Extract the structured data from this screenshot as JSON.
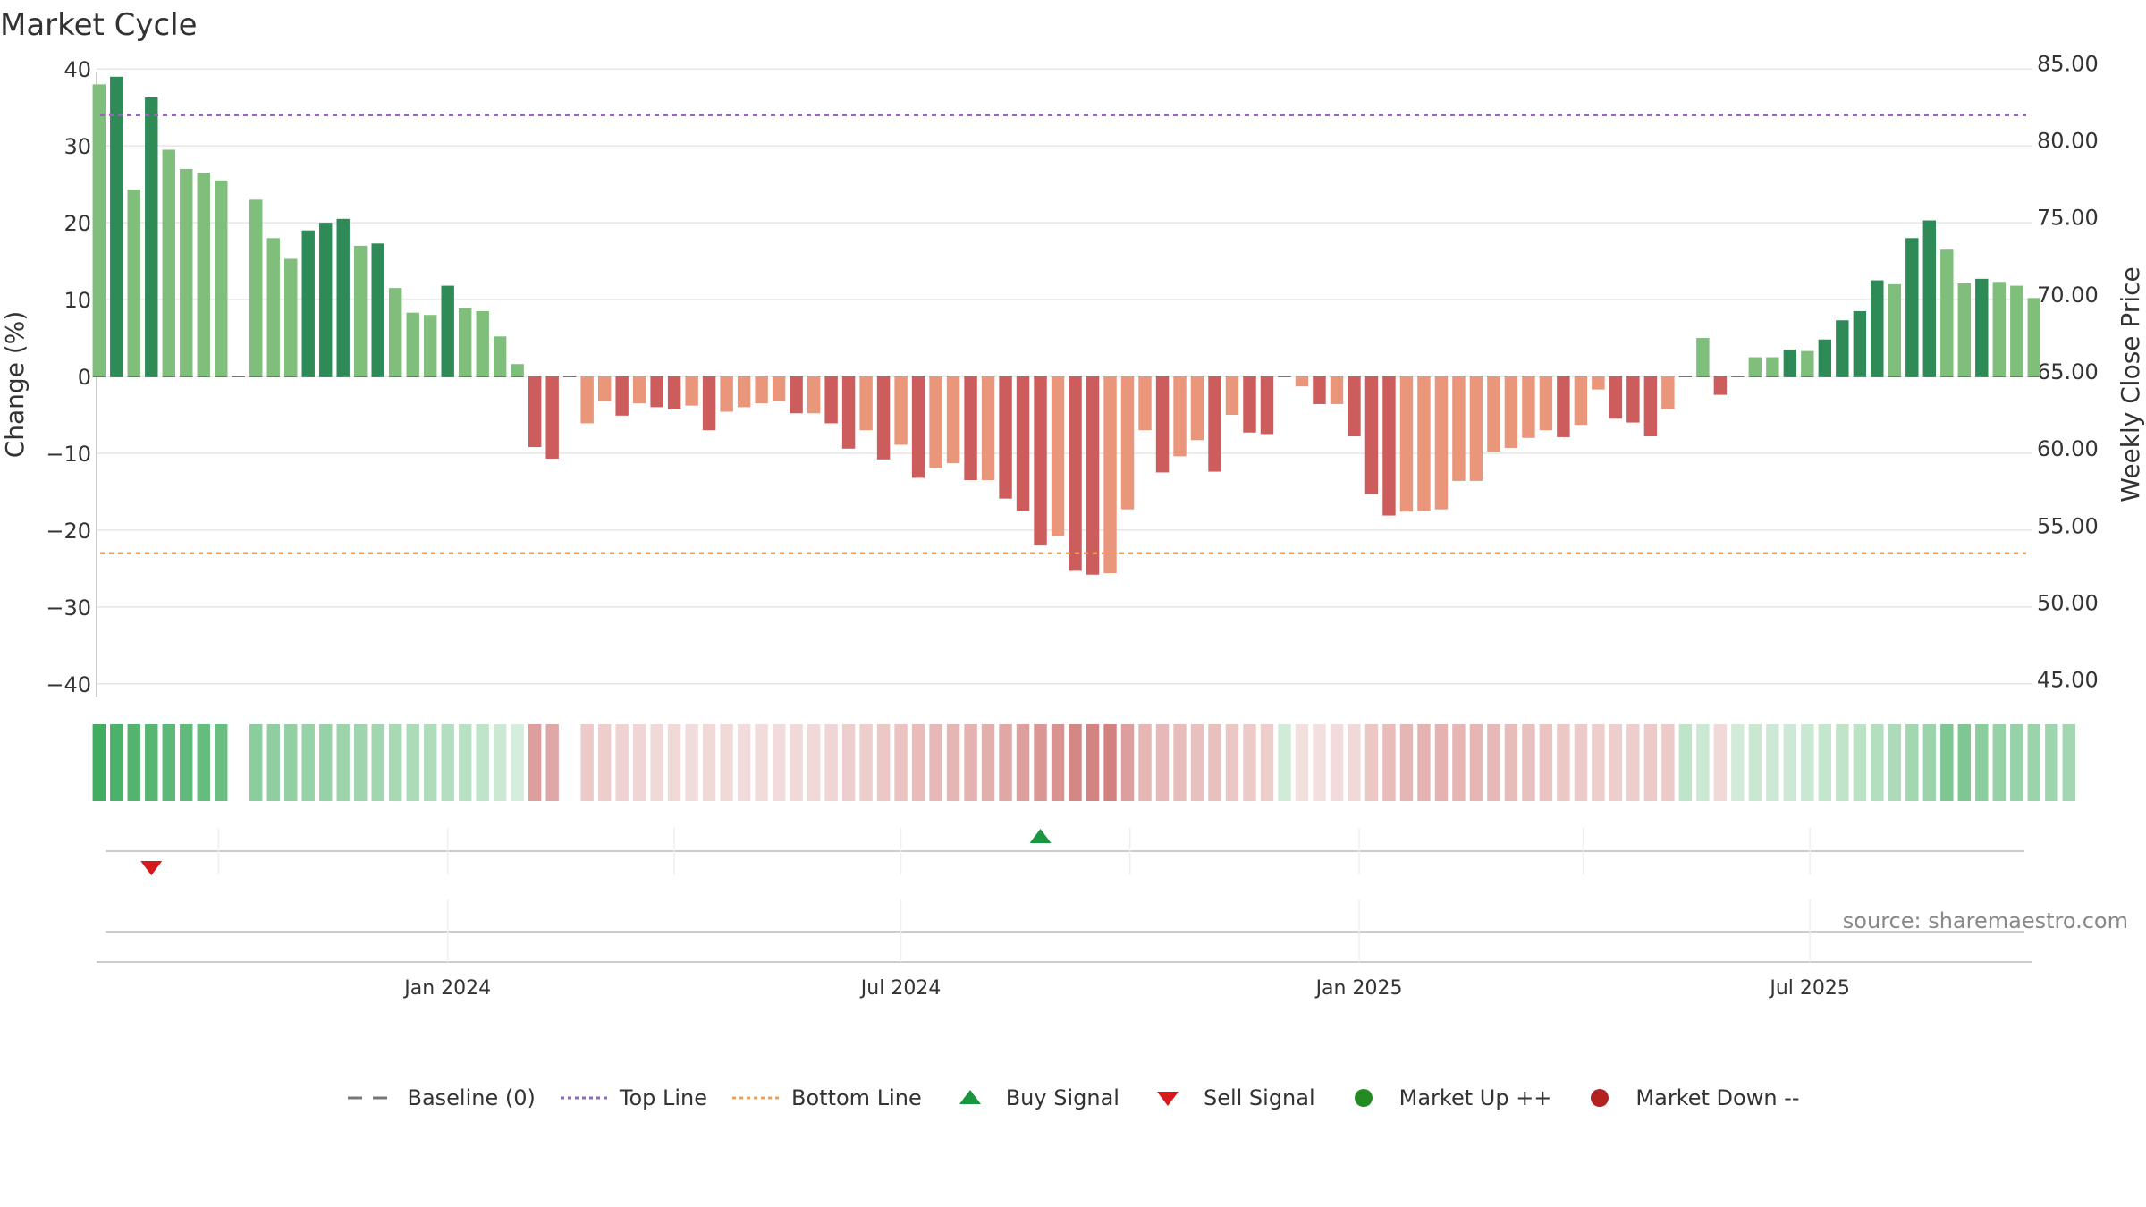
{
  "chart_data": {
    "type": "bar",
    "title": "Market Cycle",
    "ylabel": "Change (%)",
    "ylabel_right": "Weekly Close Price",
    "ylim": [
      -42,
      42
    ],
    "yticks": [
      40,
      30,
      20,
      10,
      0,
      -10,
      -20,
      -30,
      -40
    ],
    "ylim_right": [
      43.7,
      85.6
    ],
    "yticks_right": [
      "85.00",
      "80.00",
      "75.00",
      "70.00",
      "65.00",
      "60.00",
      "55.00",
      "50.00",
      "45.00"
    ],
    "xlim": [
      "2023-08-13",
      "2025-09-28"
    ],
    "x_ticks": [
      {
        "date": "2024-01-01",
        "label": "Jan 2024"
      },
      {
        "date": "2024-07-01",
        "label": "Jul 2024"
      },
      {
        "date": "2025-01-01",
        "label": "Jan 2025"
      },
      {
        "date": "2025-07-01",
        "label": "Jul 2025"
      }
    ],
    "start_week": "2023-08-14",
    "week_days": 7,
    "values": [
      38,
      39,
      24.3,
      36.3,
      29.5,
      27,
      26.5,
      25.5,
      null,
      23,
      18,
      15.3,
      19,
      20,
      20.5,
      17,
      17.3,
      11.5,
      8.3,
      8,
      11.8,
      8.9,
      8.5,
      5.2,
      1.6,
      -9.2,
      -10.7,
      null,
      -6.1,
      -3.2,
      -5.1,
      -3.5,
      -4,
      -4.3,
      -3.8,
      -7,
      -4.6,
      -4,
      -3.5,
      -3.2,
      -4.8,
      -4.8,
      -6.1,
      -9.4,
      -7,
      -10.8,
      -8.9,
      -13.2,
      -11.9,
      -11.3,
      -13.5,
      -13.5,
      -15.9,
      -17.5,
      -22,
      -20.8,
      -25.3,
      -25.8,
      -25.6,
      -17.3,
      -7,
      -12.5,
      -10.4,
      -8.3,
      -12.4,
      -5,
      -7.3,
      -7.5,
      null,
      -1.3,
      -3.6,
      -3.6,
      -7.8,
      -15.3,
      -18.1,
      -17.6,
      -17.5,
      -17.3,
      -13.6,
      -13.6,
      -9.8,
      -9.3,
      -8,
      -7,
      -7.9,
      -6.3,
      -1.7,
      -5.5,
      -6,
      -7.8,
      -4.3,
      null,
      5,
      -2.4,
      null,
      2.5,
      2.5,
      3.5,
      3.3,
      4.8,
      7.3,
      8.5,
      12.5,
      12,
      18,
      20.3,
      16.5,
      12.1,
      12.7,
      12.3,
      11.8,
      10.2
    ],
    "strength": [
      0.9,
      0.85,
      0.82,
      0.8,
      0.78,
      0.76,
      0.74,
      0.72,
      null,
      0.55,
      0.54,
      0.52,
      0.5,
      0.5,
      0.48,
      0.46,
      0.45,
      0.42,
      0.4,
      0.38,
      0.36,
      0.34,
      0.3,
      0.25,
      0.2,
      0.55,
      0.5,
      null,
      0.3,
      0.28,
      0.26,
      0.24,
      0.22,
      0.22,
      0.2,
      0.22,
      0.22,
      0.2,
      0.2,
      0.2,
      0.22,
      0.22,
      0.24,
      0.28,
      0.28,
      0.32,
      0.34,
      0.38,
      0.4,
      0.42,
      0.44,
      0.46,
      0.5,
      0.55,
      0.6,
      0.62,
      0.68,
      0.7,
      0.72,
      0.55,
      0.42,
      0.4,
      0.38,
      0.36,
      0.36,
      0.32,
      0.3,
      0.28,
      0.22,
      0.18,
      0.18,
      0.2,
      0.22,
      0.32,
      0.38,
      0.42,
      0.44,
      0.44,
      0.42,
      0.42,
      0.4,
      0.38,
      0.36,
      0.34,
      0.32,
      0.3,
      0.28,
      0.28,
      0.28,
      0.3,
      0.3,
      0.3,
      0.25,
      0.22,
      0.22,
      0.26,
      0.24,
      0.24,
      0.26,
      0.28,
      0.3,
      0.32,
      0.36,
      0.4,
      0.44,
      0.48,
      0.62,
      0.62,
      0.55,
      0.5,
      0.5,
      0.48,
      0.46,
      0.44
    ],
    "reference_lines": [
      {
        "name": "Baseline (0)",
        "y": 0
      },
      {
        "name": "Top Line",
        "y": 34
      },
      {
        "name": "Bottom Line",
        "y": -23
      }
    ],
    "signals": [
      {
        "type": "Sell Signal",
        "date": "2023-09-04"
      },
      {
        "type": "Buy Signal",
        "date": "2024-08-26"
      }
    ],
    "legend": [
      "Baseline (0)",
      "Top Line",
      "Bottom Line",
      "Buy Signal",
      "Sell Signal",
      "Market Up ++",
      "Market Down --"
    ],
    "legend_placement": "bottom",
    "grid": true
  },
  "colors": {
    "up_strong": "#2e8b57",
    "up_light": "#7fbf7b",
    "down_strong": "#cd5c5c",
    "down_light": "#e9967a",
    "baseline": "#777777",
    "top_line": "#9467bd",
    "bottom_line": "#f39c52",
    "buy": "#1a9641",
    "sell": "#d7191c",
    "market_up": "#228b22",
    "market_down": "#b22222",
    "grid": "#e6e6e6"
  },
  "source": "source: sharemaestro.com"
}
